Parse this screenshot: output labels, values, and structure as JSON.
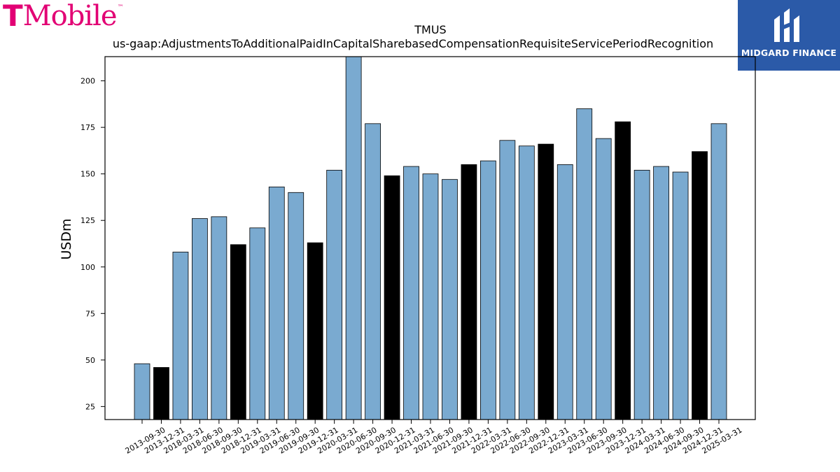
{
  "header": {
    "brand_logo_text": "T Mobile",
    "brand_logo_mark": "T",
    "brand_logo_word": "Mobile",
    "brand_tm": "™",
    "watermark_text": "MIDGARD FINANCE",
    "brand_color": "#e20074",
    "watermark_bg": "#2b5aa8"
  },
  "chart_data": {
    "type": "bar",
    "title": "TMUS",
    "subtitle": "us-gaap:AdjustmentsToAdditionalPaidInCapitalSharebasedCompensationRequisiteServicePeriodRecognition",
    "xlabel": "",
    "ylabel": "USDm",
    "ylim": [
      18,
      213
    ],
    "yticks": [
      25,
      50,
      75,
      100,
      125,
      150,
      175,
      200
    ],
    "grid": false,
    "categories": [
      "2013-09-30",
      "2013-12-31",
      "2018-03-31",
      "2018-06-30",
      "2018-09-30",
      "2018-12-31",
      "2019-03-31",
      "2019-06-30",
      "2019-09-30",
      "2019-12-31",
      "2020-03-31",
      "2020-06-30",
      "2020-09-30",
      "2020-12-31",
      "2021-03-31",
      "2021-06-30",
      "2021-09-30",
      "2021-12-31",
      "2022-03-31",
      "2022-06-30",
      "2022-09-30",
      "2022-12-31",
      "2023-03-31",
      "2023-06-30",
      "2023-09-30",
      "2023-12-31",
      "2024-03-31",
      "2024-06-30",
      "2024-09-30",
      "2024-12-31",
      "2025-03-31"
    ],
    "values": [
      48,
      46,
      108,
      126,
      127,
      112,
      121,
      143,
      140,
      113,
      152,
      214,
      177,
      149,
      154,
      150,
      147,
      155,
      157,
      168,
      165,
      166,
      155,
      185,
      169,
      178,
      152,
      154,
      151,
      162,
      177
    ],
    "highlight": [
      false,
      true,
      false,
      false,
      false,
      true,
      false,
      false,
      false,
      true,
      false,
      false,
      false,
      true,
      false,
      false,
      false,
      true,
      false,
      false,
      false,
      true,
      false,
      false,
      false,
      true,
      false,
      false,
      false,
      true,
      false
    ],
    "colors": {
      "bar": "#7aaad0",
      "highlight": "#000000",
      "edge": "#000000"
    }
  }
}
